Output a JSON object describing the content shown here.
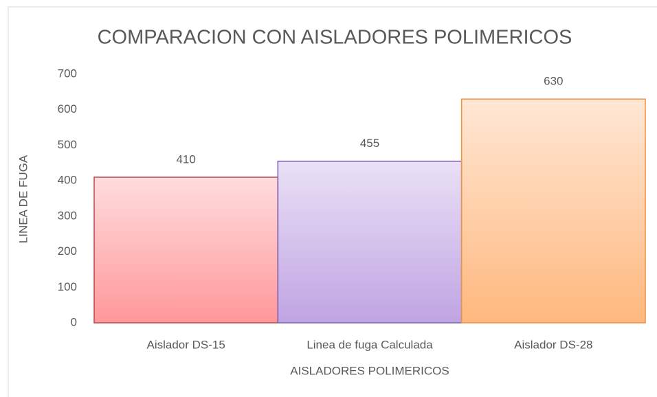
{
  "chart_data": {
    "type": "bar",
    "title": "COMPARACION CON AISLADORES POLIMERICOS",
    "x_label": "AISLADORES POLIMERICOS",
    "y_label": "LINEA DE FUGA",
    "categories": [
      "Aislador DS-15",
      "Linea de fuga Calculada",
      "Aislador DS-28"
    ],
    "values": [
      410,
      455,
      630
    ],
    "colors": [
      "#ff8c8f",
      "#b99ae0",
      "#ffb070"
    ],
    "edge_colors": [
      "#b5474a",
      "#7c5db0",
      "#f0913f"
    ],
    "ylim": [
      0,
      700
    ],
    "yticks": [
      0,
      100,
      200,
      300,
      400,
      500,
      600,
      700
    ],
    "grid": false
  }
}
